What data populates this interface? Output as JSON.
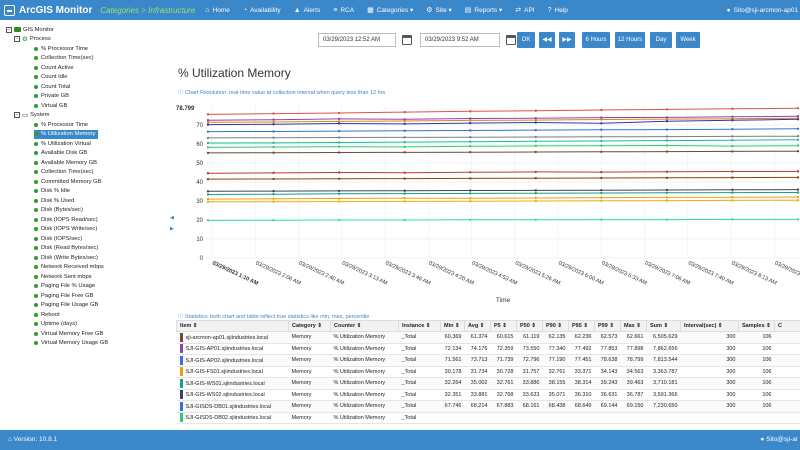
{
  "app": {
    "title": "ArcGIS Monitor",
    "breadcrumb": "Categories > Infrastructure"
  },
  "nav": [
    {
      "label": "Home",
      "icon": "home-icon",
      "glyph": "⌂"
    },
    {
      "label": "Availability",
      "icon": "availability-icon",
      "glyph": "◔"
    },
    {
      "label": "Alerts",
      "icon": "alert-icon",
      "glyph": "▲"
    },
    {
      "label": "RCA",
      "icon": "rca-icon",
      "glyph": "≡"
    },
    {
      "label": "Categories ▾",
      "icon": "categories-icon",
      "glyph": "▦"
    },
    {
      "label": "Site ▾",
      "icon": "site-icon",
      "glyph": "⚙"
    },
    {
      "label": "Reports ▾",
      "icon": "reports-icon",
      "glyph": "▤"
    },
    {
      "label": "API",
      "icon": "api-icon",
      "glyph": "⇄"
    },
    {
      "label": "Help",
      "icon": "help-icon",
      "glyph": "?"
    }
  ],
  "user": {
    "top": "Sito@sji-arcmon-ap01",
    "bottom": "Sito@sji-ar"
  },
  "footer": {
    "version": "Version: 10.8.1"
  },
  "tree": [
    {
      "label": "GIS Monitor",
      "level": 0,
      "kind": "root"
    },
    {
      "label": "Process",
      "level": 1,
      "kind": "group"
    },
    {
      "label": "% Processor Time",
      "level": 2
    },
    {
      "label": "Collection Time(sec)",
      "level": 2
    },
    {
      "label": "Count Active",
      "level": 2
    },
    {
      "label": "Count Idle",
      "level": 2
    },
    {
      "label": "Count Total",
      "level": 2
    },
    {
      "label": "Private GB",
      "level": 2
    },
    {
      "label": "Virtual GB",
      "level": 2
    },
    {
      "label": "System",
      "level": 1,
      "kind": "group2"
    },
    {
      "label": "% Processor Time",
      "level": 2
    },
    {
      "label": "% Utilization Memory",
      "level": 2,
      "selected": true
    },
    {
      "label": "% Utilization Virtual",
      "level": 2
    },
    {
      "label": "Available Disk GB",
      "level": 2
    },
    {
      "label": "Available Memory GB",
      "level": 2
    },
    {
      "label": "Collection Time(sec)",
      "level": 2
    },
    {
      "label": "Committed Memory GB",
      "level": 2
    },
    {
      "label": "Disk % Idle",
      "level": 2
    },
    {
      "label": "Disk % Used",
      "level": 2
    },
    {
      "label": "Disk (Bytes/sec)",
      "level": 2
    },
    {
      "label": "Disk (IOPS Read/sec)",
      "level": 2
    },
    {
      "label": "Disk (IOPS Write/sec)",
      "level": 2
    },
    {
      "label": "Disk (IOPS/sec)",
      "level": 2
    },
    {
      "label": "Disk (Read Bytes/sec)",
      "level": 2
    },
    {
      "label": "Disk (Write Bytes/sec)",
      "level": 2
    },
    {
      "label": "Network Received mbps",
      "level": 2
    },
    {
      "label": "Network Sent mbps",
      "level": 2
    },
    {
      "label": "Paging File % Usage",
      "level": 2
    },
    {
      "label": "Paging File Free GB",
      "level": 2
    },
    {
      "label": "Paging File Usage GB",
      "level": 2
    },
    {
      "label": "Reboot",
      "level": 2
    },
    {
      "label": "Uptime (days)",
      "level": 2
    },
    {
      "label": "Virtual Memory Free GB",
      "level": 2
    },
    {
      "label": "Virtual Memory Usage GB",
      "level": 2
    }
  ],
  "toolbar": {
    "from": "03/29/2023 12:52 AM",
    "to": "03/29/2023 9:52 AM",
    "ok": "OK",
    "prev": "◀◀",
    "next": "▶▶",
    "ranges": [
      "6 Hours",
      "12 Hours",
      "Day",
      "Week"
    ]
  },
  "page_title": "% Utilization Memory",
  "resolution_note": "Chart Resolution: real-time value at collection interval when query less than 12 hrs",
  "stats_note": "Statistics: both chart and table reflect true statistics like min, max, percentile",
  "chart_data": {
    "type": "line",
    "xlabel": "Time",
    "ylabel": "",
    "ylim": [
      0,
      80
    ],
    "max_label": "78.799",
    "yticks": [
      "70",
      "60",
      "50",
      "40",
      "30",
      "20",
      "10",
      "0"
    ],
    "yvalues": [
      70,
      60,
      50,
      40,
      30,
      20,
      10,
      0
    ],
    "xticks": [
      "03/29/2023 1:10 AM",
      "03/29/2023 2:06 AM",
      "03/29/2023 2:40 AM",
      "03/29/2023 3:13 AM",
      "03/29/2023 3:46 AM",
      "03/29/2023 4:20 AM",
      "03/29/2023 4:53 AM",
      "03/29/2023 5:26 AM",
      "03/29/2023 6:00 AM",
      "03/29/2023 6:33 AM",
      "03/29/2023 7:06 AM",
      "03/29/2023 7:40 AM",
      "03/29/2023 8:13 AM",
      "03/29/2023 8:46 AM"
    ],
    "series": [
      {
        "color": "#d9534f",
        "values": [
          75.6,
          76.0,
          76.3,
          76.8,
          77.2,
          77.5,
          77.9,
          78.2,
          78.5,
          78.8
        ]
      },
      {
        "color": "#8e44ad",
        "values": [
          72.5,
          72.8,
          73.2,
          73.0,
          73.4,
          73.6,
          73.9,
          74.0,
          74.3,
          74.6
        ]
      },
      {
        "color": "#e67e22",
        "values": [
          71.4,
          71.6,
          71.9,
          72.1,
          72.4,
          72.6,
          72.9,
          73.1,
          73.3,
          73.5
        ]
      },
      {
        "color": "#2c3e9e",
        "values": [
          70.2,
          70.4,
          70.8,
          70.6,
          71.0,
          71.3,
          70.9,
          72.0,
          72.5,
          73.0
        ]
      },
      {
        "color": "#3a6fd8",
        "values": [
          66.5,
          66.6,
          66.8,
          67.0,
          67.1,
          67.3,
          67.5,
          67.6,
          67.8,
          68.0
        ]
      },
      {
        "color": "#7f7f7f",
        "values": [
          63.2,
          63.3,
          63.4,
          63.5,
          63.6,
          63.7,
          63.8,
          63.9,
          64.0,
          64.1
        ]
      },
      {
        "color": "#1abc9c",
        "values": [
          60.5,
          60.6,
          60.8,
          61.0,
          61.2,
          61.4,
          61.6,
          61.8,
          62.0,
          62.2
        ]
      },
      {
        "color": "#2ecc71",
        "values": [
          58.2,
          58.4,
          58.6,
          58.5,
          58.8,
          59.0,
          59.1,
          59.2,
          58.9,
          59.1
        ]
      },
      {
        "color": "#6b4f2a",
        "values": [
          55.3,
          55.4,
          55.5,
          55.6,
          55.7,
          55.8,
          55.9,
          56.0,
          56.1,
          56.2
        ]
      },
      {
        "color": "#c0392b",
        "values": [
          44.6,
          44.8,
          45.0,
          44.9,
          45.1,
          45.3,
          45.2,
          45.4,
          45.5,
          45.6
        ]
      },
      {
        "color": "#8b4513",
        "values": [
          41.5,
          41.6,
          41.7,
          41.8,
          41.9,
          42.0,
          42.1,
          42.2,
          42.3,
          42.4
        ]
      },
      {
        "color": "#34495e",
        "values": [
          35.1,
          35.2,
          35.3,
          35.4,
          35.5,
          35.6,
          35.7,
          35.8,
          35.9,
          36.0
        ]
      },
      {
        "color": "#16a085",
        "values": [
          33.4,
          33.6,
          33.8,
          33.9,
          34.0,
          34.1,
          34.2,
          34.3,
          34.4,
          34.5
        ]
      },
      {
        "color": "#f39c12",
        "values": [
          31.0,
          31.2,
          31.3,
          31.5,
          31.4,
          31.6,
          31.8,
          31.9,
          32.0,
          32.1
        ]
      },
      {
        "color": "#e6b800",
        "values": [
          29.5,
          29.6,
          29.7,
          29.8,
          29.9,
          30.0,
          30.1,
          30.2,
          30.3,
          30.4
        ]
      },
      {
        "color": "#2ee0a0",
        "values": [
          19.8,
          19.9,
          20.0,
          20.0,
          20.1,
          20.1,
          20.2,
          20.2,
          20.3,
          20.3
        ]
      }
    ]
  },
  "stats": {
    "headers": [
      "Item ⇕",
      "Category ⇕",
      "Counter ⇕",
      "Instance ⇕",
      "Min ⇕",
      "Avg ⇕",
      "P5 ⇕",
      "P50 ⇕",
      "P90 ⇕",
      "P95 ⇕",
      "P99 ⇕",
      "Max ⇕",
      "Sum ⇕",
      "Interval(sec) ⇕",
      "Samples ⇕",
      "C"
    ],
    "rows": [
      {
        "color": "#6b4f2a",
        "cells": [
          "sji-arcmon-ap01.sjiindustries.local",
          "Memory",
          "% Utilization Memory",
          "_Total",
          "60.369",
          "61.374",
          "60.615",
          "61.119",
          "62.135",
          "62.236",
          "62.573",
          "62.661",
          "6,505.629",
          "300",
          "106",
          ""
        ]
      },
      {
        "color": "#8e44ad",
        "cells": [
          "SJI-GIS-AP01.sjiindustries.local",
          "Memory",
          "% Utilization Memory",
          "_Total",
          "72.134",
          "74.176",
          "72.359",
          "73.550",
          "77.340",
          "77.492",
          "77.853",
          "77.898",
          "7,862.656",
          "300",
          "106",
          ""
        ]
      },
      {
        "color": "#3a6fd8",
        "cells": [
          "SJI-GIS-AP02.sjiindustries.local",
          "Memory",
          "% Utilization Memory",
          "_Total",
          "71.561",
          "73.713",
          "71.739",
          "72.796",
          "77.190",
          "77.451",
          "78.638",
          "78.799",
          "7,813.544",
          "300",
          "106",
          ""
        ]
      },
      {
        "color": "#f39c12",
        "cells": [
          "SJI-GIS-FS01.sjiindustries.local",
          "Memory",
          "% Utilization Memory",
          "_Total",
          "30.178",
          "31.734",
          "30.728",
          "31.757",
          "32.761",
          "33.371",
          "34.143",
          "34.563",
          "3,363.787",
          "300",
          "106",
          ""
        ]
      },
      {
        "color": "#16a085",
        "cells": [
          "SJI-GIS-WS01.sjiindustries.local",
          "Memory",
          "% Utilization Memory",
          "_Total",
          "32.264",
          "35.002",
          "32.761",
          "33.886",
          "38.155",
          "38.314",
          "39.243",
          "39.463",
          "3,710.181",
          "300",
          "106",
          ""
        ]
      },
      {
        "color": "#34495e",
        "cells": [
          "SJI-GIS-WS02.sjiindustries.local",
          "Memory",
          "% Utilization Memory",
          "_Total",
          "32.351",
          "33.881",
          "32.768",
          "33.633",
          "35.071",
          "36.310",
          "36.631",
          "36.787",
          "3,591.366",
          "300",
          "106",
          ""
        ]
      },
      {
        "color": "#3a6fd8",
        "cells": [
          "SJI-GISDS-DB01.sjiindustries.local",
          "Memory",
          "% Utilization Memory",
          "_Total",
          "67.746",
          "68.214",
          "67.883",
          "68.161",
          "68.438",
          "68.649",
          "69.144",
          "69.150",
          "7,230.650",
          "300",
          "106",
          ""
        ]
      },
      {
        "color": "#2ecc71",
        "cells": [
          "SJI-GISDS-DB02.sjiindustries.local",
          "Memory",
          "% Utilization Memory",
          "_Total",
          "",
          "",
          "",
          "",
          "",
          "",
          "",
          "",
          "",
          "",
          "",
          ""
        ]
      }
    ]
  }
}
